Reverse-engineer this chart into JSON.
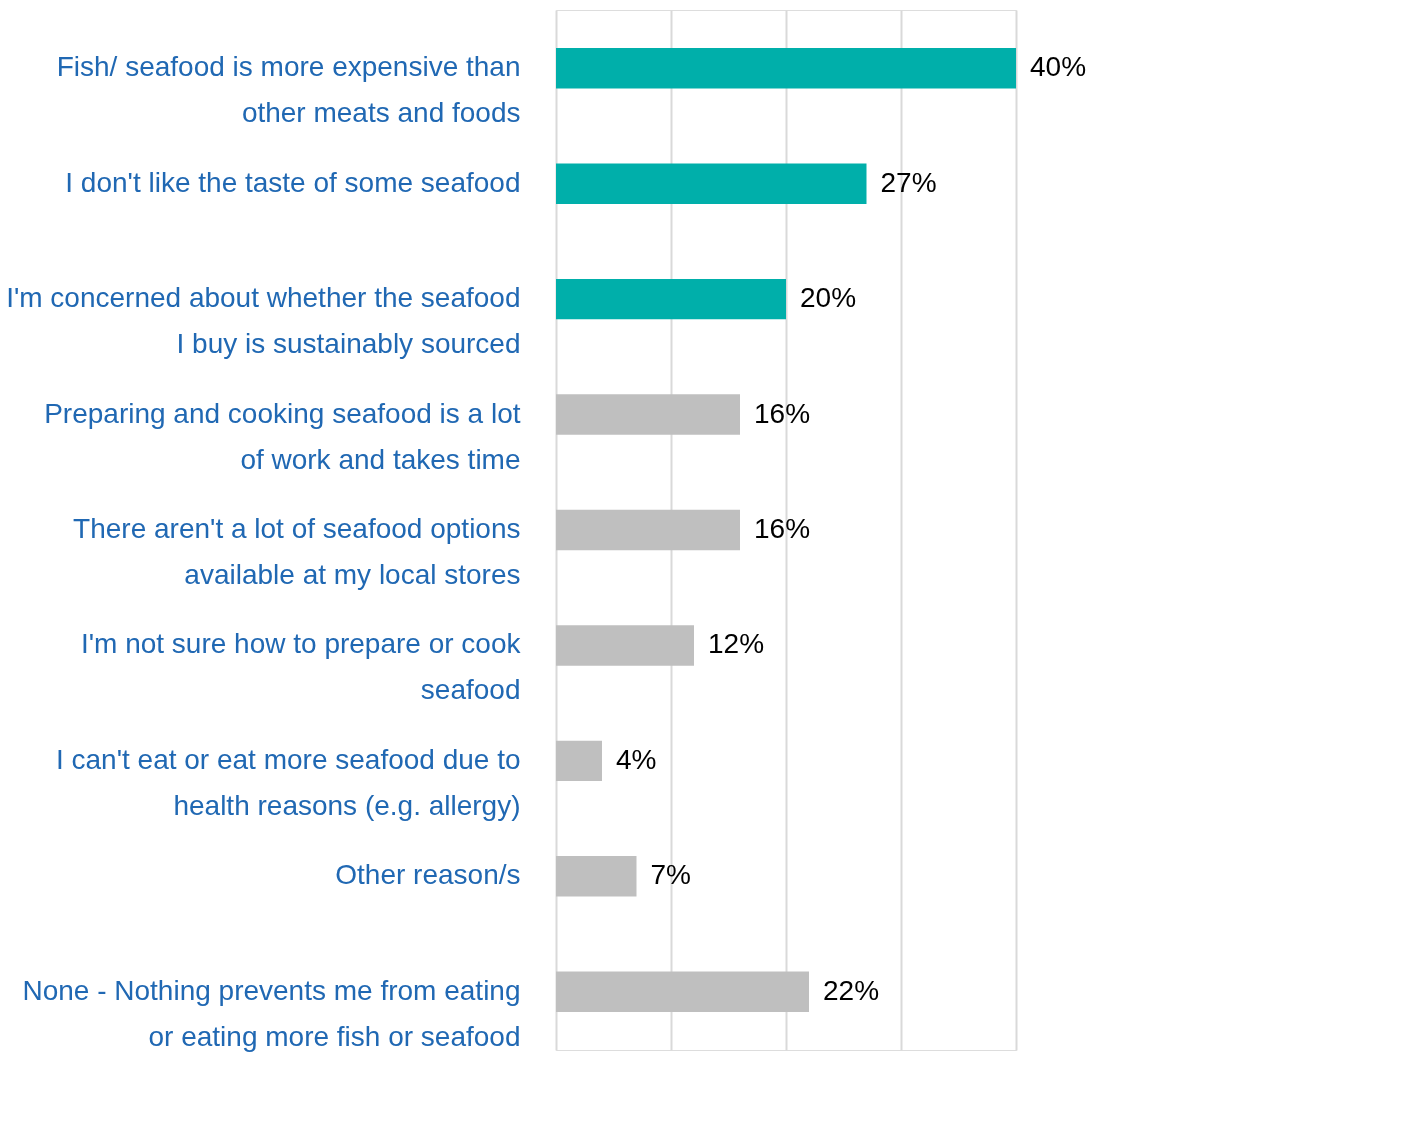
{
  "chart_data": {
    "type": "bar",
    "orientation": "horizontal",
    "categories": [
      "Fish/ seafood is more expensive than other meats and foods",
      "I don't like the taste of some seafood",
      "I'm concerned about whether the seafood I buy is sustainably sourced",
      "Preparing and cooking seafood is a lot of work and takes time",
      "There aren't a lot of seafood options available at my local stores",
      "I'm not sure how to prepare or cook seafood",
      "I can't eat or eat more seafood due to health reasons (e.g. allergy)",
      "Other reason/s",
      "None - Nothing prevents me from eating or eating more fish or seafood"
    ],
    "values": [
      40,
      27,
      20,
      16,
      16,
      12,
      4,
      7,
      22
    ],
    "value_labels": [
      "40%",
      "27%",
      "20%",
      "16%",
      "16%",
      "12%",
      "4%",
      "7%",
      "22%"
    ],
    "colors": [
      "#00afaa",
      "#00afaa",
      "#00afaa",
      "#bfbfbf",
      "#bfbfbf",
      "#bfbfbf",
      "#bfbfbf",
      "#bfbfbf",
      "#bfbfbf"
    ],
    "xlim": [
      0,
      40
    ],
    "xticks": [
      {
        "value": 0,
        "label": null
      },
      {
        "value": 10,
        "label": null
      },
      {
        "value": 20,
        "label": null
      },
      {
        "value": 30,
        "label": null
      },
      {
        "value": 40,
        "label": null
      }
    ],
    "grid": "x",
    "tick_labels": "y"
  }
}
